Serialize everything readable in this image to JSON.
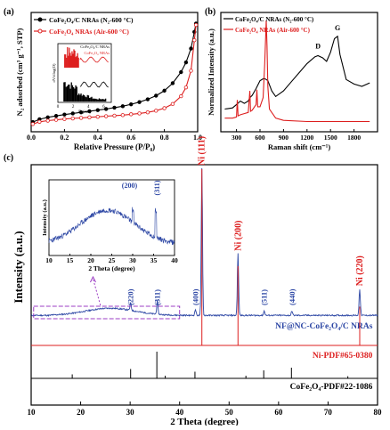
{
  "chart_data": [
    {
      "panel": "(a)",
      "type": "line",
      "xlabel": "Relative Pressure (P/P₀)",
      "ylabel": "N₂ adsorbed (cm³ g⁻¹, STP)",
      "xlim": [
        0.0,
        1.0
      ],
      "xticks": [
        "0.0",
        "0.2",
        "0.4",
        "0.6",
        "0.8",
        "1.0"
      ],
      "legend_position": "top-left",
      "series": [
        {
          "name": "CoFe₂O₄/C NRAs (N₂-600 °C)",
          "color": "#000000",
          "marker": "circle-filled",
          "x": [
            0.01,
            0.05,
            0.1,
            0.15,
            0.2,
            0.25,
            0.3,
            0.35,
            0.4,
            0.45,
            0.5,
            0.55,
            0.6,
            0.65,
            0.7,
            0.75,
            0.8,
            0.85,
            0.9,
            0.93,
            0.96,
            0.98,
            0.99
          ],
          "y": [
            35,
            45,
            52,
            57,
            62,
            66,
            70,
            74,
            78,
            82,
            87,
            92,
            99,
            107,
            117,
            130,
            148,
            175,
            215,
            250,
            300,
            360,
            390
          ]
        },
        {
          "name": "CoFe₂O₄ NRAs (Air-600 °C)",
          "color": "#dd1f1f",
          "marker": "circle-open",
          "x": [
            0.01,
            0.05,
            0.1,
            0.15,
            0.2,
            0.25,
            0.3,
            0.35,
            0.4,
            0.45,
            0.5,
            0.55,
            0.6,
            0.65,
            0.7,
            0.75,
            0.8,
            0.85,
            0.9,
            0.93,
            0.96,
            0.98,
            0.99
          ],
          "y": [
            28,
            36,
            40,
            43,
            46,
            48,
            50,
            52,
            54,
            56,
            58,
            60,
            63,
            66,
            70,
            76,
            85,
            100,
            128,
            160,
            220,
            330,
            385
          ]
        }
      ],
      "inset": {
        "xlabel": "D (nm)",
        "ylabel": "dV/dlog(D)",
        "xticks": [
          "0",
          "2",
          "4",
          "6"
        ],
        "legend": [
          "CoFe₂O₄/C NRAs",
          "CoFe₂O₄ NRAs"
        ]
      }
    },
    {
      "panel": "(b)",
      "type": "line",
      "xlabel": "Raman shift (cm⁻¹)",
      "ylabel": "Normalized Intensity (a.u.)",
      "xlim": [
        100,
        2100
      ],
      "xticks": [
        "300",
        "600",
        "900",
        "1200",
        "1500",
        "1800"
      ],
      "legend_position": "top-left",
      "annotations": [
        "D",
        "G"
      ],
      "series": [
        {
          "name": "CoFe₂O₄/C NRAs (N₂-600 °C)",
          "color": "#000000",
          "x": [
            150,
            250,
            300,
            350,
            400,
            450,
            470,
            500,
            550,
            600,
            650,
            680,
            700,
            750,
            800,
            900,
            1000,
            1100,
            1200,
            1300,
            1340,
            1400,
            1450,
            1500,
            1550,
            1590,
            1620,
            1700,
            1800,
            1900,
            2000
          ],
          "y": [
            0.2,
            0.21,
            0.24,
            0.27,
            0.25,
            0.27,
            0.3,
            0.32,
            0.38,
            0.45,
            0.47,
            0.46,
            0.45,
            0.36,
            0.31,
            0.36,
            0.44,
            0.52,
            0.6,
            0.66,
            0.67,
            0.65,
            0.62,
            0.7,
            0.82,
            0.84,
            0.68,
            0.46,
            0.42,
            0.4,
            0.43
          ]
        },
        {
          "name": "CoFe₂O₄ NRAs (Air-600 °C)",
          "color": "#dd1f1f",
          "x": [
            150,
            250,
            300,
            310,
            320,
            350,
            450,
            470,
            480,
            500,
            550,
            560,
            570,
            600,
            640,
            660,
            680,
            690,
            700,
            720,
            800,
            900,
            1200,
            1500,
            1800,
            2000
          ],
          "y": [
            0.12,
            0.12,
            0.13,
            0.28,
            0.14,
            0.15,
            0.17,
            0.36,
            0.18,
            0.19,
            0.24,
            0.37,
            0.22,
            0.22,
            0.3,
            0.6,
            0.98,
            0.75,
            0.4,
            0.2,
            0.12,
            0.1,
            0.09,
            0.09,
            0.09,
            0.09
          ]
        }
      ]
    },
    {
      "panel": "(c)",
      "type": "line",
      "xlabel": "2 Theta (degree)",
      "ylabel": "Intensity (a.u.)",
      "xlim": [
        10,
        80
      ],
      "xticks": [
        "10",
        "20",
        "30",
        "40",
        "50",
        "60",
        "70",
        "80"
      ],
      "series": [
        {
          "name": "NF@NC-CoFe₂O₄/C NRAs",
          "color": "#2c46a4",
          "peaks": [
            {
              "x": 30.1,
              "y": 0.05,
              "label": "(220)"
            },
            {
              "x": 35.5,
              "y": 0.09,
              "label": "(311)"
            },
            {
              "x": 43.2,
              "y": 0.04,
              "label": "(400)"
            },
            {
              "x": 44.5,
              "y": 1.0,
              "label": "Ni (111)"
            },
            {
              "x": 51.8,
              "y": 0.42,
              "label": "Ni (200)"
            },
            {
              "x": 57.1,
              "y": 0.03,
              "label": "(511)"
            },
            {
              "x": 62.7,
              "y": 0.03,
              "label": "(440)"
            },
            {
              "x": 76.4,
              "y": 0.18,
              "label": "Ni (220)"
            }
          ]
        }
      ],
      "references": [
        {
          "name": "Ni-PDF#65-0380",
          "color": "#dd1f1f",
          "positions": [
            44.5,
            51.8,
            76.4
          ],
          "heights": [
            1.0,
            0.45,
            0.22
          ]
        },
        {
          "name": "CoFe₂O₄-PDF#22-1086",
          "color": "#000000",
          "positions": [
            18.3,
            30.1,
            35.4,
            37.1,
            43.1,
            53.4,
            57.0,
            62.6,
            74.0
          ],
          "heights": [
            0.15,
            0.35,
            1.0,
            0.1,
            0.25,
            0.1,
            0.3,
            0.4,
            0.08
          ]
        }
      ],
      "inset": {
        "xlabel": "2 Theta (degree)",
        "ylabel": "Intensity (a.u.)",
        "xlim": [
          10,
          40
        ],
        "xticks": [
          "10",
          "15",
          "20",
          "25",
          "30",
          "35",
          "40"
        ],
        "peaks": [
          {
            "x": 30.1,
            "label": "(200)"
          },
          {
            "x": 35.5,
            "label": "(311)"
          }
        ]
      }
    }
  ]
}
